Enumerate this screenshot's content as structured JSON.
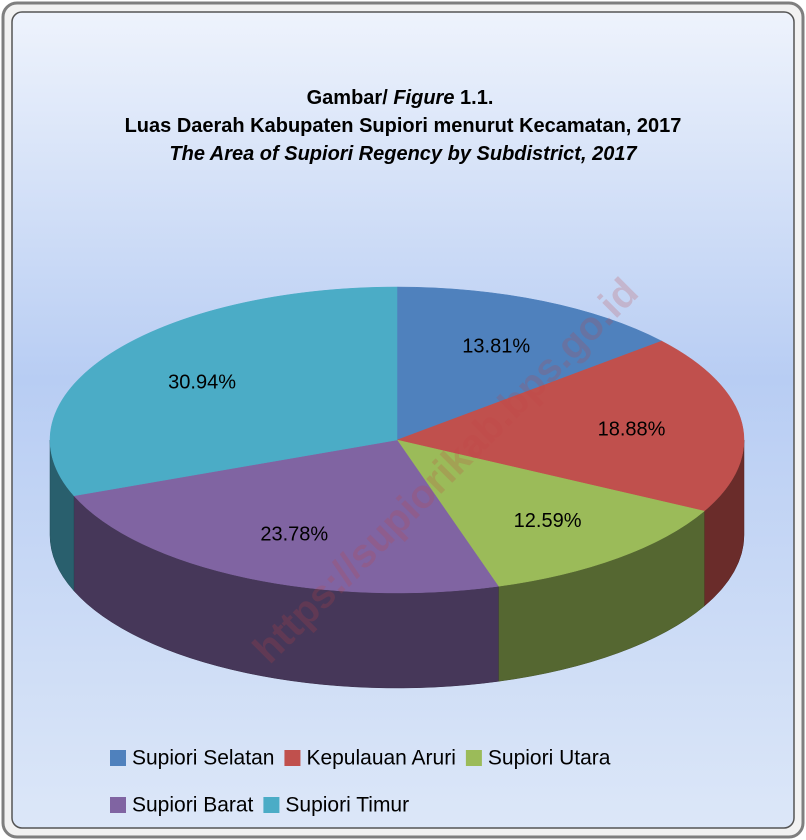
{
  "chart_data": {
    "type": "pie",
    "title_prefix": "Gambar/",
    "title_figure": "Figure",
    "title_number": "1.1.",
    "title": "Luas Daerah Kabupaten Supiori menurut Kecamatan, 2017",
    "subtitle": "The Area of Supiori Regency by Subdistrict, 2017",
    "watermark": "https://supiorikab.bps.go.id",
    "categories": [
      "Supiori Selatan",
      "Kepulauan Aruri",
      "Supiori Utara",
      "Supiori Barat",
      "Supiori Timur"
    ],
    "values": [
      13.81,
      18.88,
      12.59,
      23.78,
      30.94
    ],
    "value_labels": [
      "13.81%",
      "18.88%",
      "12.59%",
      "23.78%",
      "30.94%"
    ],
    "colors": [
      "#4f81bd",
      "#c0504d",
      "#9bbb59",
      "#8064a2",
      "#4bacc6"
    ],
    "legend": "bottom"
  }
}
